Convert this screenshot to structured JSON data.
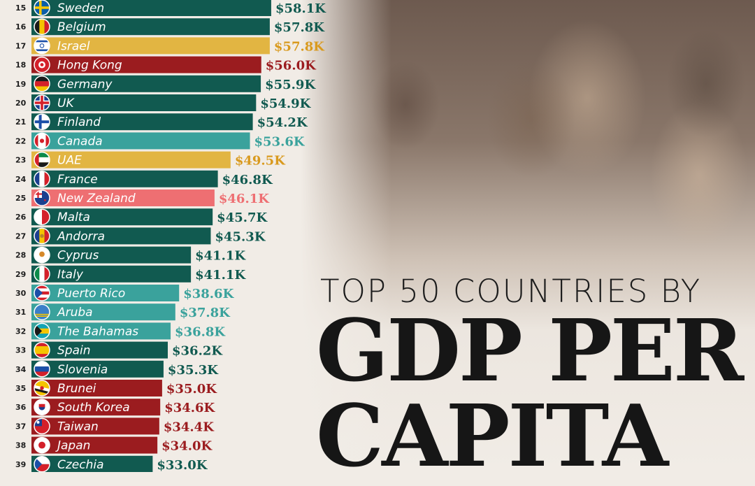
{
  "title": {
    "line1": "TOP 50 COUNTRIES BY",
    "line2": "GDP PER",
    "line3": "CAPITA"
  },
  "colors": {
    "teal_dark": "#115a50",
    "teal_light": "#3aa29c",
    "gold": "#e2b542",
    "red_dark": "#9b1c1f",
    "red_light": "#ee6f72"
  },
  "chart_data": {
    "type": "bar",
    "orientation": "horizontal",
    "unit": "USD",
    "rows": [
      {
        "rank": "15",
        "country": "Sweden",
        "value": 58.1,
        "label": "$58.1K",
        "color": "teal_dark",
        "flag": "sweden-flag-icon"
      },
      {
        "rank": "16",
        "country": "Belgium",
        "value": 57.8,
        "label": "$57.8K",
        "color": "teal_dark",
        "flag": "belgium-flag-icon"
      },
      {
        "rank": "17",
        "country": "Israel",
        "value": 57.8,
        "label": "$57.8K",
        "color": "gold",
        "flag": "israel-flag-icon"
      },
      {
        "rank": "18",
        "country": "Hong Kong",
        "value": 56.0,
        "label": "$56.0K",
        "color": "red_dark",
        "flag": "hong-kong-flag-icon"
      },
      {
        "rank": "19",
        "country": "Germany",
        "value": 55.9,
        "label": "$55.9K",
        "color": "teal_dark",
        "flag": "germany-flag-icon"
      },
      {
        "rank": "20",
        "country": "UK",
        "value": 54.9,
        "label": "$54.9K",
        "color": "teal_dark",
        "flag": "uk-flag-icon"
      },
      {
        "rank": "21",
        "country": "Finland",
        "value": 54.2,
        "label": "$54.2K",
        "color": "teal_dark",
        "flag": "finland-flag-icon"
      },
      {
        "rank": "22",
        "country": "Canada",
        "value": 53.6,
        "label": "$53.6K",
        "color": "teal_light",
        "flag": "canada-flag-icon"
      },
      {
        "rank": "23",
        "country": "UAE",
        "value": 49.5,
        "label": "$49.5K",
        "color": "gold",
        "flag": "uae-flag-icon"
      },
      {
        "rank": "24",
        "country": "France",
        "value": 46.8,
        "label": "$46.8K",
        "color": "teal_dark",
        "flag": "france-flag-icon"
      },
      {
        "rank": "25",
        "country": "New Zealand",
        "value": 46.1,
        "label": "$46.1K",
        "color": "red_light",
        "flag": "new-zealand-flag-icon"
      },
      {
        "rank": "26",
        "country": "Malta",
        "value": 45.7,
        "label": "$45.7K",
        "color": "teal_dark",
        "flag": "malta-flag-icon"
      },
      {
        "rank": "27",
        "country": "Andorra",
        "value": 45.3,
        "label": "$45.3K",
        "color": "teal_dark",
        "flag": "andorra-flag-icon"
      },
      {
        "rank": "28",
        "country": "Cyprus",
        "value": 41.1,
        "label": "$41.1K",
        "color": "teal_dark",
        "flag": "cyprus-flag-icon"
      },
      {
        "rank": "29",
        "country": "Italy",
        "value": 41.1,
        "label": "$41.1K",
        "color": "teal_dark",
        "flag": "italy-flag-icon"
      },
      {
        "rank": "30",
        "country": "Puerto Rico",
        "value": 38.6,
        "label": "$38.6K",
        "color": "teal_light",
        "flag": "puerto-rico-flag-icon"
      },
      {
        "rank": "31",
        "country": "Aruba",
        "value": 37.8,
        "label": "$37.8K",
        "color": "teal_light",
        "flag": "aruba-flag-icon"
      },
      {
        "rank": "32",
        "country": "The Bahamas",
        "value": 36.8,
        "label": "$36.8K",
        "color": "teal_light",
        "flag": "bahamas-flag-icon"
      },
      {
        "rank": "33",
        "country": "Spain",
        "value": 36.2,
        "label": "$36.2K",
        "color": "teal_dark",
        "flag": "spain-flag-icon"
      },
      {
        "rank": "34",
        "country": "Slovenia",
        "value": 35.3,
        "label": "$35.3K",
        "color": "teal_dark",
        "flag": "slovenia-flag-icon"
      },
      {
        "rank": "35",
        "country": "Brunei",
        "value": 35.0,
        "label": "$35.0K",
        "color": "red_dark",
        "flag": "brunei-flag-icon"
      },
      {
        "rank": "36",
        "country": "South Korea",
        "value": 34.6,
        "label": "$34.6K",
        "color": "red_dark",
        "flag": "south-korea-flag-icon"
      },
      {
        "rank": "37",
        "country": "Taiwan",
        "value": 34.4,
        "label": "$34.4K",
        "color": "red_dark",
        "flag": "taiwan-flag-icon"
      },
      {
        "rank": "38",
        "country": "Japan",
        "value": 34.0,
        "label": "$34.0K",
        "color": "red_dark",
        "flag": "japan-flag-icon"
      },
      {
        "rank": "39",
        "country": "Czechia",
        "value": 33.0,
        "label": "$33.0K",
        "color": "teal_dark",
        "flag": "czechia-flag-icon"
      }
    ]
  }
}
